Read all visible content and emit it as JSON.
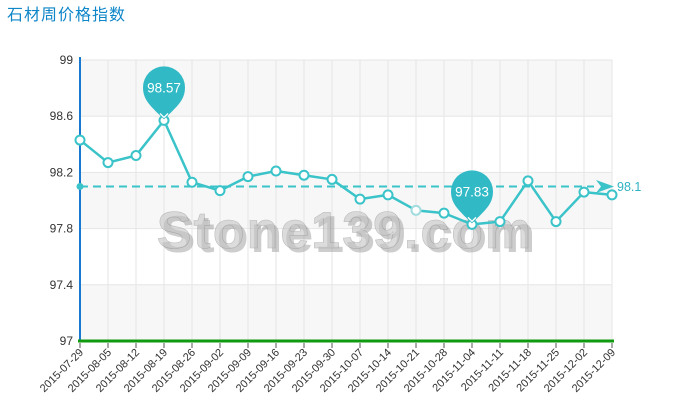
{
  "page": {
    "title": "石材周价格指数"
  },
  "colors": {
    "title": "#0e86c8",
    "line": "#3ac3c8",
    "line_muted": "#a2dcdf",
    "marker_fill": "#ffffff",
    "balloon": "#31bac6",
    "balloon_text": "#ffffff",
    "y_axis": "#1779d0",
    "x_axis": "#0f9a0f",
    "axis_label": "#333333",
    "tick": "#555555",
    "grid": "#e6e6e6",
    "band": "#f7f7f7",
    "ref_line": "#3ac3c8",
    "ref_label": "#2fb3c4",
    "watermark": "#c6c6c6",
    "watermark_shadow": "#919191"
  },
  "chart_data": {
    "type": "line",
    "title": "石材周价格指数",
    "categories": [
      "2015-07-29",
      "2015-08-05",
      "2015-08-12",
      "2015-08-19",
      "2015-08-26",
      "2015-09-02",
      "2015-09-09",
      "2015-09-16",
      "2015-09-23",
      "2015-09-30",
      "2015-10-07",
      "2015-10-14",
      "2015-10-21",
      "2015-10-28",
      "2015-11-04",
      "2015-11-11",
      "2015-11-18",
      "2015-11-25",
      "2015-12-02",
      "2015-12-09"
    ],
    "values": [
      98.43,
      98.27,
      98.32,
      98.57,
      98.13,
      98.07,
      98.17,
      98.21,
      98.18,
      98.15,
      98.01,
      98.04,
      97.93,
      97.91,
      97.83,
      97.85,
      98.14,
      97.85,
      98.06,
      98.04
    ],
    "xlabel": "",
    "ylabel": "",
    "ylim": [
      97,
      99
    ],
    "yticks": [
      {
        "v": 99,
        "label": "99"
      },
      {
        "v": 98.6,
        "label": "98.6"
      },
      {
        "v": 98.2,
        "label": "98.2"
      },
      {
        "v": 97.8,
        "label": "97.8"
      },
      {
        "v": 97.4,
        "label": "97.4"
      },
      {
        "v": 97,
        "label": "97"
      }
    ],
    "grid": true,
    "legend_position": "none",
    "reference_line": {
      "value": 98.1,
      "label": "98.1"
    },
    "annotations": [
      {
        "index": 3,
        "label": "98.57"
      },
      {
        "index": 14,
        "label": "97.83"
      }
    ],
    "muted_point_index": 12,
    "watermark": "Stone139.com"
  }
}
